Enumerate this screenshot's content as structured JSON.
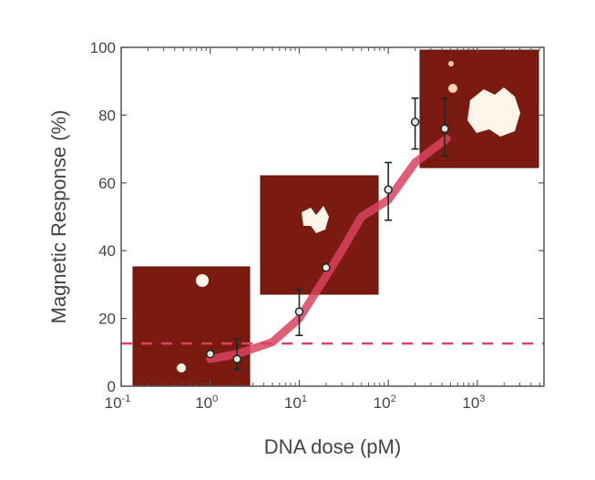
{
  "chart_data": {
    "type": "scatter",
    "title": "",
    "xlabel": "DNA dose (pM)",
    "ylabel": "Magnetic Response (%)",
    "xscale": "log",
    "xlim": [
      0.1,
      5600
    ],
    "ylim": [
      0,
      100
    ],
    "xticks": [
      {
        "base": "10",
        "exp": "-1",
        "value": 0.1
      },
      {
        "base": "10",
        "exp": "0",
        "value": 1
      },
      {
        "base": "10",
        "exp": "1",
        "value": 10
      },
      {
        "base": "10",
        "exp": "2",
        "value": 100
      },
      {
        "base": "10",
        "exp": "3",
        "value": 1000
      }
    ],
    "yticks": [
      "0",
      "20",
      "40",
      "60",
      "80",
      "100"
    ],
    "grid": false,
    "points": [
      {
        "x": 1,
        "y": 9.5,
        "err_low": 9.5,
        "err_high": 9.5
      },
      {
        "x": 2,
        "y": 8,
        "err_low": 5,
        "err_high": 14
      },
      {
        "x": 10,
        "y": 22,
        "err_low": 15,
        "err_high": 28.5
      },
      {
        "x": 20,
        "y": 35,
        "err_low": 35,
        "err_high": 35
      },
      {
        "x": 100,
        "y": 58,
        "err_low": 49,
        "err_high": 66
      },
      {
        "x": 200,
        "y": 78,
        "err_low": 70,
        "err_high": 85
      },
      {
        "x": 430,
        "y": 76,
        "err_low": 68,
        "err_high": 85
      }
    ],
    "fit_curve": {
      "x": [
        1,
        2,
        5,
        10,
        20,
        30,
        50,
        100,
        200,
        450
      ],
      "y": [
        8,
        9.5,
        13,
        20,
        32.5,
        40,
        50,
        55,
        66,
        73
      ],
      "color": "#d9435f"
    },
    "baseline": {
      "y": 12.6,
      "style": "dashed",
      "color": "#d9435f"
    },
    "insets": [
      {
        "description_color": "#7a1a10",
        "position": "bottom-left"
      },
      {
        "description_color": "#7a1a10",
        "position": "middle"
      },
      {
        "description_color": "#7a1a10",
        "position": "top-right"
      }
    ]
  }
}
